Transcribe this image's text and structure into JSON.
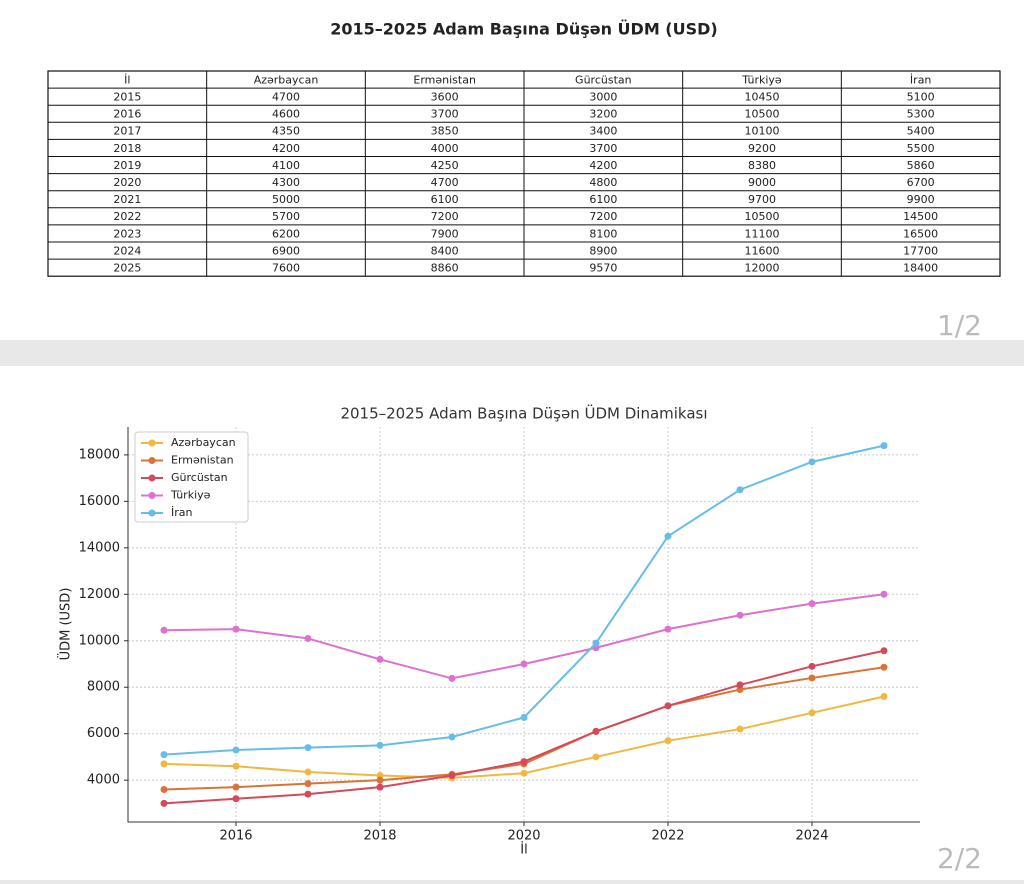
{
  "page1": {
    "title": "2015–2025 Adam Başına Düşən ÜDM (USD)",
    "table": {
      "header": [
        "İl",
        "Azərbaycan",
        "Ermənistan",
        "Gürcüstan",
        "Türkiyə",
        "İran"
      ],
      "rows": [
        [
          2015,
          4700,
          3600,
          3000,
          10450,
          5100
        ],
        [
          2016,
          4600,
          3700,
          3200,
          10500,
          5300
        ],
        [
          2017,
          4350,
          3850,
          3400,
          10100,
          5400
        ],
        [
          2018,
          4200,
          4000,
          3700,
          9200,
          5500
        ],
        [
          2019,
          4100,
          4250,
          4200,
          8380,
          5860
        ],
        [
          2020,
          4300,
          4700,
          4800,
          9000,
          6700
        ],
        [
          2021,
          5000,
          6100,
          6100,
          9700,
          9900
        ],
        [
          2022,
          5700,
          7200,
          7200,
          10500,
          14500
        ],
        [
          2023,
          6200,
          7900,
          8100,
          11100,
          16500
        ],
        [
          2024,
          6900,
          8400,
          8900,
          11600,
          17700
        ],
        [
          2025,
          7600,
          8860,
          9570,
          12000,
          18400
        ]
      ]
    },
    "page_number": "1/2"
  },
  "chart_data": {
    "type": "line",
    "title": "2015–2025 Adam Başına Düşən ÜDM Dinamikası",
    "x_label": "İl",
    "y_label": "ÜDM (USD)",
    "x": [
      2015,
      2016,
      2017,
      2018,
      2019,
      2020,
      2021,
      2022,
      2023,
      2024,
      2025
    ],
    "xlim": [
      2014.5,
      2025.5
    ],
    "xticks": [
      2016,
      2018,
      2020,
      2022,
      2024
    ],
    "ylim": [
      2200,
      19200
    ],
    "yticks": [
      4000,
      6000,
      8000,
      10000,
      12000,
      14000,
      16000,
      18000
    ],
    "grid": true,
    "legend": "upper left",
    "series": [
      {
        "name": "Azərbaycan",
        "color": "#f0b840",
        "values": [
          4700,
          4600,
          4350,
          4200,
          4100,
          4300,
          5000,
          5700,
          6200,
          6900,
          7600
        ]
      },
      {
        "name": "Ermənistan",
        "color": "#d9733a",
        "values": [
          3600,
          3700,
          3850,
          4000,
          4250,
          4700,
          6100,
          7200,
          7900,
          8400,
          8860
        ]
      },
      {
        "name": "Gürcüstan",
        "color": "#d44a5a",
        "values": [
          3000,
          3200,
          3400,
          3700,
          4200,
          4800,
          6100,
          7200,
          8100,
          8900,
          9570
        ]
      },
      {
        "name": "Türkiyə",
        "color": "#dd70d0",
        "values": [
          10450,
          10500,
          10100,
          9200,
          8380,
          9000,
          9700,
          10500,
          11100,
          11600,
          12000
        ]
      },
      {
        "name": "İran",
        "color": "#66bde8",
        "values": [
          5100,
          5300,
          5400,
          5500,
          5860,
          6700,
          9900,
          14500,
          16500,
          17700,
          18400
        ]
      }
    ]
  },
  "page2": {
    "page_number": "2/2"
  }
}
